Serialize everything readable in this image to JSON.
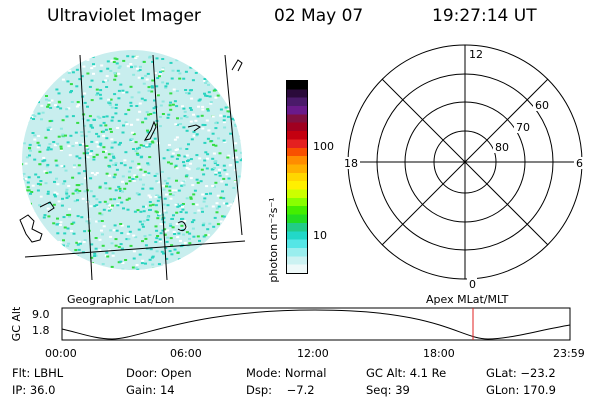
{
  "header": {
    "instrument": "Ultraviolet Imager",
    "date": "02 May 07",
    "time": "19:27:14 UT"
  },
  "colorbar": {
    "unit_label": "photon cm⁻²s⁻¹",
    "tick_labels": [
      "100",
      "10"
    ],
    "colors": [
      "#000000",
      "#2a0a3a",
      "#4a1a6a",
      "#6a1a8a",
      "#801040",
      "#a00020",
      "#c40010",
      "#e42020",
      "#f85000",
      "#ff8c00",
      "#ffb000",
      "#ffd700",
      "#fff000",
      "#ccff00",
      "#88ff00",
      "#44ee00",
      "#22dd22",
      "#22cc88",
      "#22d8c8",
      "#55e6e6",
      "#99eeee",
      "#ccf2f2",
      "#eef9f9"
    ]
  },
  "polar_plot": {
    "mlt_labels": {
      "top": "12",
      "right": "6",
      "left": "18",
      "bottom": "0"
    },
    "lat_labels": [
      "60",
      "70",
      "80"
    ]
  },
  "map_labels": {
    "left": "Geographic Lat/Lon",
    "right": "Apex MLat/MLT"
  },
  "altitude_plot": {
    "ylabel": "GC Alt",
    "yticks": [
      "9.0",
      "1.8"
    ],
    "xticks": [
      "00:00",
      "06:00",
      "12:00",
      "18:00",
      "23:59"
    ]
  },
  "status": {
    "row1": [
      "Flt: LBHL",
      "Door: Open",
      "Mode: Normal",
      "GC Alt: 4.1 Re",
      "GLat: −23.2"
    ],
    "row2": [
      "IP: 36.0",
      "Gain: 14",
      "Dsp:    −7.2",
      "Seq: 39",
      "GLon: 170.9"
    ]
  },
  "colors": {
    "aurora_light": "#c8eeee",
    "aurora_mid": "#2ad4c0",
    "aurora_green": "#33dd44",
    "marker": "#e02020"
  }
}
